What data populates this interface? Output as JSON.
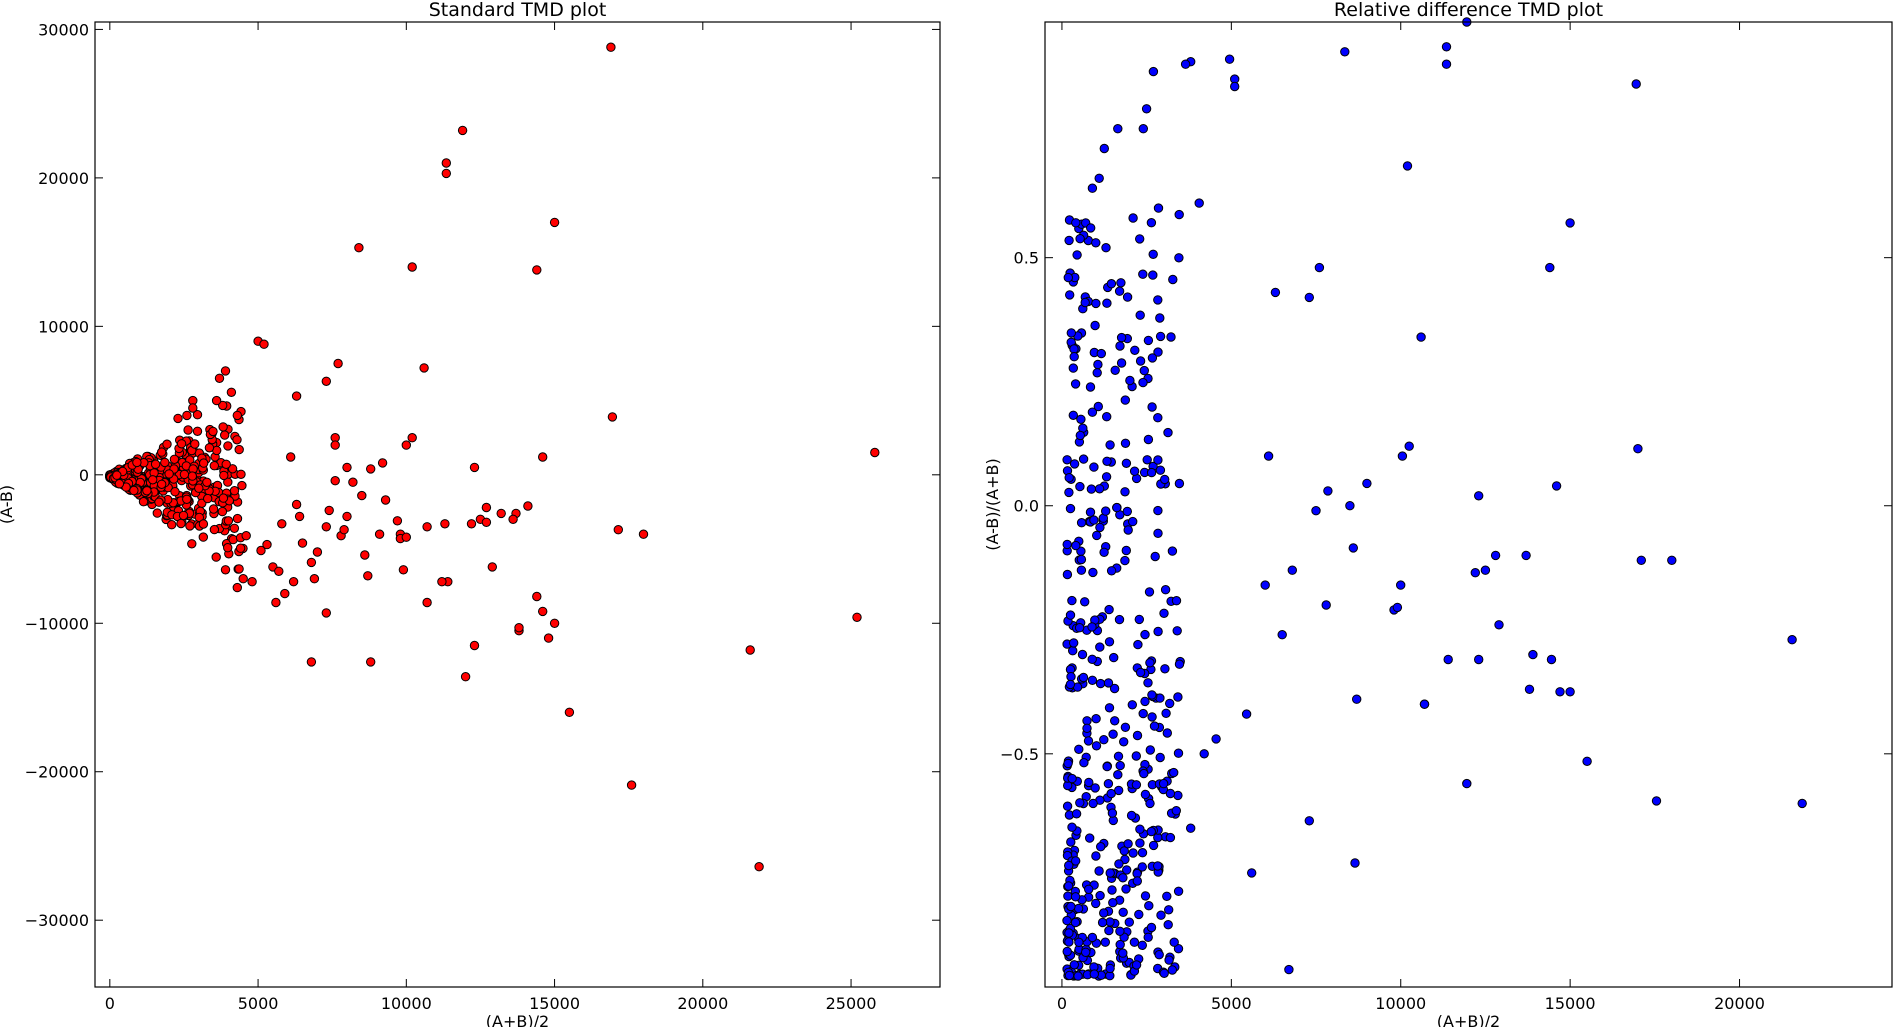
{
  "chart_data": [
    {
      "type": "scatter",
      "title": "Standard TMD plot",
      "xlabel": "(A+B)/2",
      "ylabel": "(A-B)",
      "xlim": [
        -500,
        28000
      ],
      "ylim": [
        -34500,
        30500
      ],
      "xticks": [
        0,
        5000,
        10000,
        15000,
        20000,
        25000
      ],
      "xtick_labels": [
        "0",
        "5000",
        "10000",
        "15000",
        "20000",
        "25000"
      ],
      "yticks": [
        -30000,
        -20000,
        -10000,
        0,
        10000,
        20000,
        30000
      ],
      "ytick_labels": [
        "−30000",
        "−20000",
        "−10000",
        "0",
        "10000",
        "20000",
        "30000"
      ],
      "grid": false,
      "marker_color": "#ff0000",
      "marker_edge": "#000000",
      "series": [
        {
          "x": [
            16900,
            11900,
            11350,
            11350,
            15000,
            8400,
            10200,
            14400,
            5000,
            5200,
            6300,
            7300,
            7700,
            10600,
            3900,
            3600,
            2800,
            2800,
            2600,
            2300,
            10200,
            10000,
            16950,
            6100,
            7600,
            7600,
            8000,
            9200,
            12300,
            9800,
            17150,
            18000,
            3700,
            4300,
            12200,
            12500,
            14800,
            12900,
            11400,
            10700,
            15500,
            17600,
            21600,
            25200,
            21900,
            12300,
            12000,
            13800,
            14400,
            14600,
            15000,
            6800,
            8800,
            11200,
            8700,
            7300,
            5600,
            25800,
            14600,
            3900,
            4300,
            4500,
            4800,
            5500,
            6500,
            7000,
            7300,
            7800,
            8000,
            8600,
            9100,
            9900,
            10700,
            13700,
            13800,
            5800,
            6900,
            9800,
            6400,
            5900,
            13600,
            12700,
            13200,
            14100,
            3000,
            3300,
            3500,
            4000,
            4200,
            4600,
            5100,
            5300,
            5700,
            6200,
            6800,
            7400,
            7900,
            8500,
            9700,
            10000,
            11300,
            12700,
            8200,
            6300,
            7600,
            8800,
            9300
          ],
          "y": [
            28800,
            23200,
            21000,
            20300,
            17000,
            15300,
            14000,
            13800,
            9000,
            8800,
            5300,
            6300,
            7500,
            7200,
            7000,
            5000,
            5000,
            4500,
            4000,
            3800,
            2500,
            2000,
            3900,
            1200,
            2500,
            2000,
            500,
            800,
            500,
            -4000,
            -3700,
            -4000,
            6500,
            4000,
            -3300,
            -3000,
            -11000,
            -6200,
            -7200,
            -8600,
            -16000,
            -20900,
            -11800,
            -9600,
            -26400,
            -11500,
            -13600,
            -10500,
            -8200,
            -9200,
            -10000,
            -12600,
            -12600,
            -7200,
            -6800,
            -9300,
            -8600,
            1500,
            1200,
            -6400,
            -7600,
            -7000,
            -7200,
            -6200,
            -4600,
            -5200,
            -3500,
            -4100,
            -2800,
            -5400,
            -4000,
            -6400,
            -3500,
            -2600,
            -10300,
            -3300,
            -7000,
            -4300,
            -2800,
            -8000,
            -3000,
            -3200,
            -2600,
            -2100,
            -900,
            -1600,
            -2300,
            -3100,
            -3600,
            -4100,
            -5100,
            -4700,
            -6500,
            -7200,
            -5900,
            -2400,
            -3700,
            -1400,
            -3100,
            -4200,
            -3300,
            -2200,
            -500,
            -2000,
            -400,
            400,
            -1700
          ],
          "cluster": {
            "x_range": [
              0,
              4500
            ],
            "slope_range": [
              -1.7,
              1.55
            ],
            "count": 520
          }
        }
      ]
    },
    {
      "type": "scatter",
      "title": "Relative difference TMD plot",
      "xlabel": "(A+B)/2",
      "ylabel": "(A-B)/(A+B)",
      "xlim": [
        -500,
        24500
      ],
      "ylim": [
        -0.97,
        0.975
      ],
      "xticks": [
        0,
        5000,
        10000,
        15000,
        20000
      ],
      "xtick_labels": [
        "0",
        "5000",
        "10000",
        "15000",
        "20000"
      ],
      "yticks": [
        -0.5,
        0.0,
        0.5
      ],
      "ytick_labels": [
        "−0.5",
        "0.0",
        "0.5"
      ],
      "grid": false,
      "marker_color": "#0000ff",
      "marker_edge": "#000000",
      "series": [
        {
          "x": [
            11950,
            11350,
            11350,
            8350,
            16950,
            4950,
            5100,
            5100,
            10200,
            3800,
            3650,
            2700,
            2500,
            2400,
            1650,
            1250,
            1100,
            900,
            2100,
            2850,
            4050,
            700,
            850,
            1000,
            1300,
            14400,
            15000,
            7600,
            7300,
            6300,
            10600,
            17000,
            10250,
            10050,
            6100,
            7850,
            8500,
            9000,
            12300,
            14600,
            13700,
            17100,
            18000,
            12200,
            12500,
            12800,
            12900,
            21550,
            13900,
            14450,
            15000,
            13800,
            14700,
            12300,
            11400,
            10700,
            11950,
            21850,
            17550,
            15500,
            8650,
            6700,
            7300,
            5600,
            5450,
            4200,
            4550,
            3800,
            3200,
            3000,
            2600,
            2300,
            2100,
            1800,
            1500,
            1200,
            900,
            700,
            600,
            500,
            400,
            300,
            250,
            9800,
            9900,
            8600,
            8700,
            10700,
            10000,
            7500,
            7800,
            6800,
            6500,
            6000
          ],
          "y": [
            0.975,
            0.925,
            0.89,
            0.915,
            0.85,
            0.9,
            0.86,
            0.845,
            0.685,
            0.895,
            0.89,
            0.875,
            0.8,
            0.76,
            0.76,
            0.72,
            0.66,
            0.64,
            0.58,
            0.6,
            0.61,
            0.57,
            0.56,
            0.53,
            0.52,
            0.48,
            0.57,
            0.48,
            0.42,
            0.43,
            0.34,
            0.115,
            0.12,
            0.1,
            0.1,
            0.03,
            0.0,
            0.045,
            0.02,
            0.04,
            -0.1,
            -0.11,
            -0.11,
            -0.135,
            -0.13,
            -0.1,
            -0.24,
            -0.27,
            -0.3,
            -0.31,
            -0.375,
            -0.37,
            -0.375,
            -0.31,
            -0.31,
            -0.4,
            -0.56,
            -0.6,
            -0.595,
            -0.515,
            -0.72,
            -0.935,
            -0.635,
            -0.74,
            -0.42,
            -0.5,
            -0.47,
            -0.65,
            -0.58,
            -0.56,
            -0.6,
            -0.68,
            -0.7,
            -0.75,
            -0.8,
            -0.84,
            -0.87,
            -0.9,
            -0.87,
            -0.88,
            -0.84,
            -0.55,
            -0.36,
            -0.21,
            -0.205,
            -0.085,
            -0.39,
            -0.4,
            -0.16,
            -0.01,
            -0.2,
            -0.13,
            -0.26,
            -0.16
          ],
          "cluster": {
            "x_range": [
              150,
              3500
            ],
            "y_range": [
              -0.95,
              0.6
            ],
            "count": 470
          }
        }
      ]
    }
  ]
}
